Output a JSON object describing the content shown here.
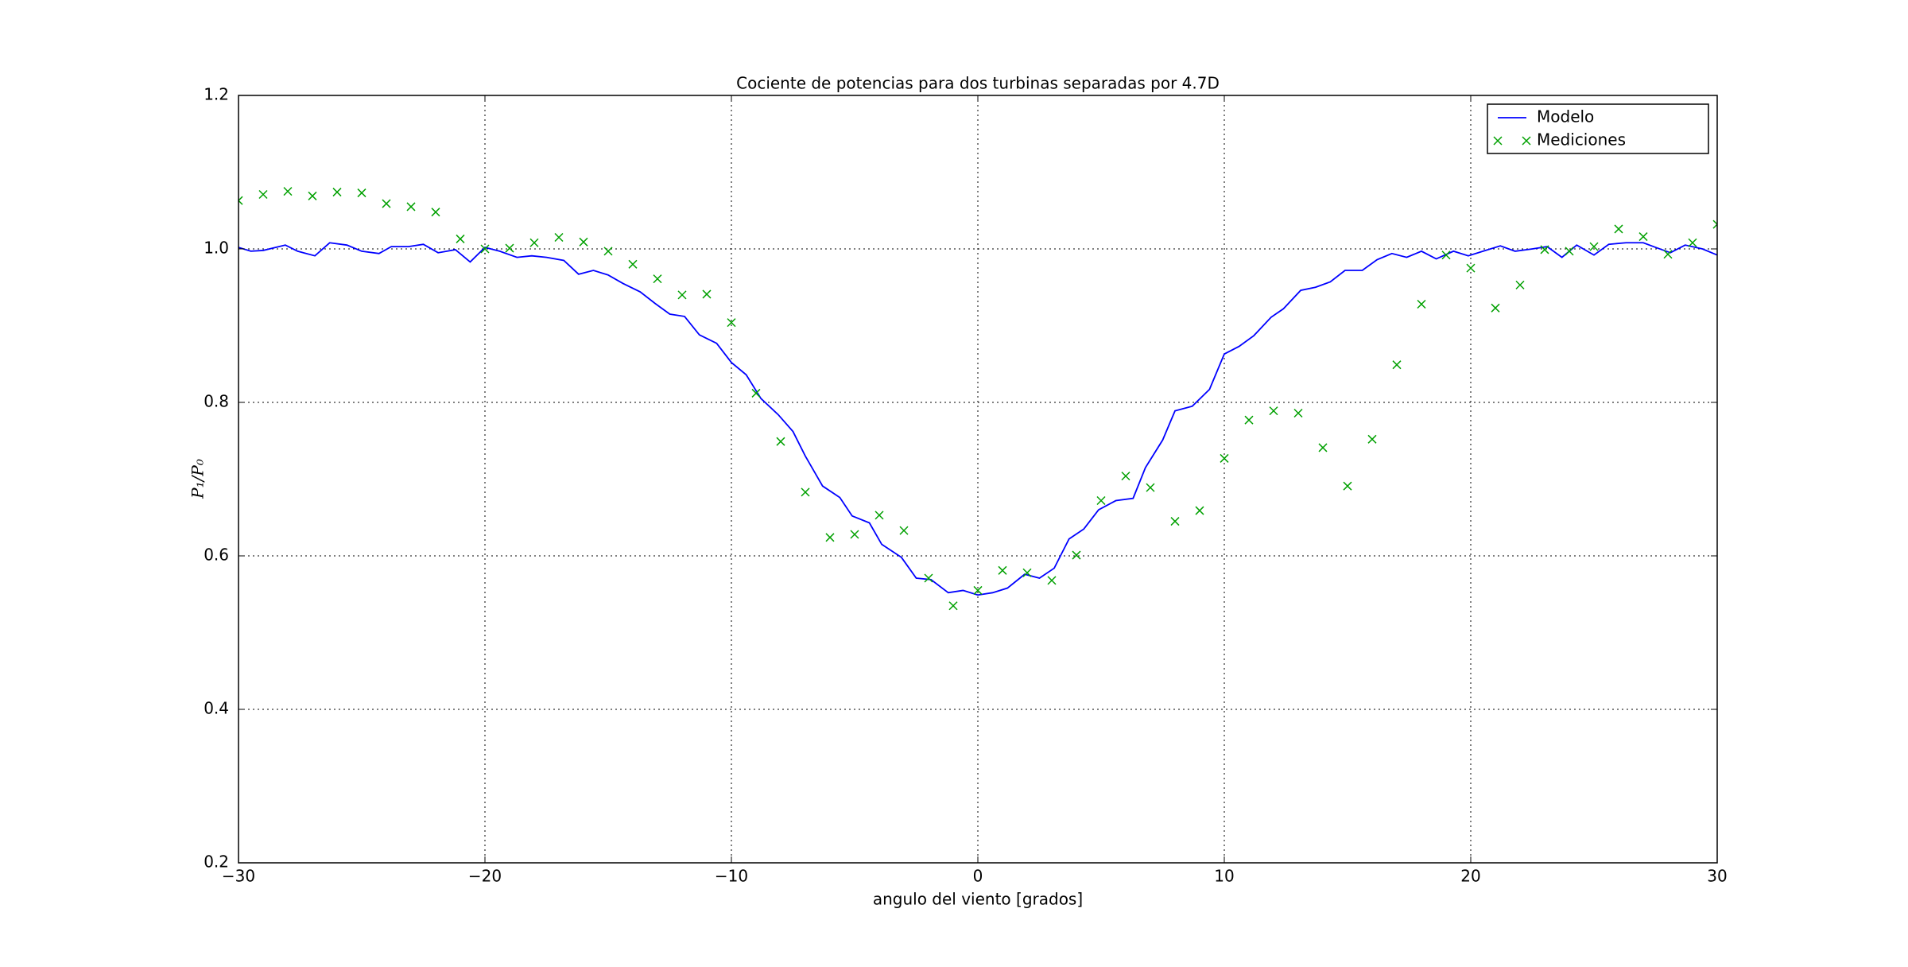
{
  "chart_data": {
    "type": "line",
    "title": "Cociente de potencias para dos turbinas separadas por 4.7D",
    "xlabel": "angulo del viento [grados]",
    "ylabel": "P₁/P₀",
    "xlim": [
      -30,
      30
    ],
    "ylim": [
      0.2,
      1.2
    ],
    "xticks": [
      {
        "value": -30,
        "label": "−30"
      },
      {
        "value": -20,
        "label": "−20"
      },
      {
        "value": -10,
        "label": "−10"
      },
      0,
      10,
      20,
      30
    ],
    "yticks": [
      0.2,
      0.4,
      0.6,
      0.8,
      {
        "value": 1,
        "label": "1.0"
      },
      1.2
    ],
    "grid": true,
    "legend": "upper right",
    "series": [
      {
        "name": "Modelo",
        "color": "#0000ff",
        "kind": "line",
        "x": [
          -30.0,
          -29.5,
          -29.0,
          -28.1,
          -27.6,
          -26.9,
          -26.3,
          -25.6,
          -25.0,
          -24.3,
          -23.8,
          -23.1,
          -22.5,
          -21.9,
          -21.2,
          -20.6,
          -20.0,
          -19.4,
          -18.7,
          -18.1,
          -17.5,
          -16.8,
          -16.2,
          -15.6,
          -15.0,
          -14.4,
          -13.7,
          -13.1,
          -12.5,
          -11.9,
          -11.3,
          -10.6,
          -10.0,
          -9.4,
          -8.8,
          -8.1,
          -7.5,
          -7.0,
          -6.3,
          -5.6,
          -5.1,
          -4.4,
          -3.9,
          -3.1,
          -2.5,
          -1.9,
          -1.2,
          -0.6,
          0,
          0.6,
          1.2,
          1.9,
          2.5,
          3.1,
          3.7,
          4.3,
          4.9,
          5.6,
          6.3,
          6.8,
          7.5,
          8.0,
          8.7,
          9.4,
          10.0,
          10.6,
          11.2,
          11.9,
          12.4,
          13.1,
          13.7,
          14.3,
          14.9,
          15.6,
          16.2,
          16.8,
          17.4,
          18.0,
          18.6,
          19.3,
          19.9,
          20.5,
          21.2,
          21.8,
          22.5,
          23.1,
          23.7,
          24.3,
          25.0,
          25.6,
          26.3,
          27.0,
          27.5,
          28.1,
          28.7,
          29.4,
          30.0
        ],
        "values": [
          1.002,
          0.997,
          0.998,
          1.005,
          0.997,
          0.991,
          1.008,
          1.005,
          0.997,
          0.994,
          1.003,
          1.003,
          1.006,
          0.995,
          0.999,
          0.983,
          1.002,
          0.997,
          0.989,
          0.991,
          0.989,
          0.985,
          0.967,
          0.972,
          0.966,
          0.955,
          0.944,
          0.929,
          0.915,
          0.912,
          0.888,
          0.877,
          0.852,
          0.836,
          0.805,
          0.784,
          0.762,
          0.73,
          0.691,
          0.676,
          0.652,
          0.643,
          0.615,
          0.598,
          0.571,
          0.569,
          0.552,
          0.555,
          0.549,
          0.552,
          0.558,
          0.576,
          0.571,
          0.584,
          0.622,
          0.635,
          0.66,
          0.672,
          0.675,
          0.715,
          0.751,
          0.789,
          0.795,
          0.817,
          0.863,
          0.873,
          0.887,
          0.911,
          0.922,
          0.946,
          0.95,
          0.957,
          0.972,
          0.972,
          0.986,
          0.994,
          0.989,
          0.997,
          0.987,
          0.997,
          0.991,
          0.997,
          1.004,
          0.997,
          1.0,
          1.003,
          0.989,
          1.005,
          0.992,
          1.006,
          1.008,
          1.008,
          1.002,
          0.995,
          1.005,
          1.0,
          0.992
        ]
      },
      {
        "name": "Mediciones",
        "color": "#00a000",
        "kind": "marker",
        "x": [
          -30,
          -29,
          -28,
          -27,
          -26,
          -25,
          -24,
          -23,
          -22,
          -21,
          -20,
          -19,
          -18,
          -17,
          -16,
          -15,
          -14,
          -13,
          -12,
          -11,
          -10,
          -9,
          -8,
          -7,
          -6,
          -5,
          -4,
          -3,
          -2,
          -1,
          0,
          1,
          2,
          3,
          4,
          5,
          6,
          7,
          8,
          9,
          10,
          11,
          12,
          13,
          14,
          15,
          16,
          17,
          18,
          19,
          20,
          21,
          22,
          23,
          24,
          25,
          26,
          27,
          28,
          29,
          30
        ],
        "values": [
          1.063,
          1.071,
          1.075,
          1.069,
          1.074,
          1.073,
          1.059,
          1.055,
          1.048,
          1.013,
          1.0,
          1.001,
          1.008,
          1.015,
          1.009,
          0.997,
          0.98,
          0.961,
          0.94,
          0.941,
          0.904,
          0.812,
          0.749,
          0.683,
          0.624,
          0.628,
          0.653,
          0.633,
          0.571,
          0.535,
          0.555,
          0.581,
          0.578,
          0.568,
          0.601,
          0.672,
          0.704,
          0.689,
          0.645,
          0.659,
          0.727,
          0.777,
          0.789,
          0.786,
          0.741,
          0.691,
          0.752,
          0.849,
          0.928,
          0.992,
          0.975,
          0.923,
          0.953,
          0.999,
          0.997,
          1.003,
          1.026,
          1.016,
          0.993,
          1.008,
          1.032
        ]
      }
    ]
  }
}
